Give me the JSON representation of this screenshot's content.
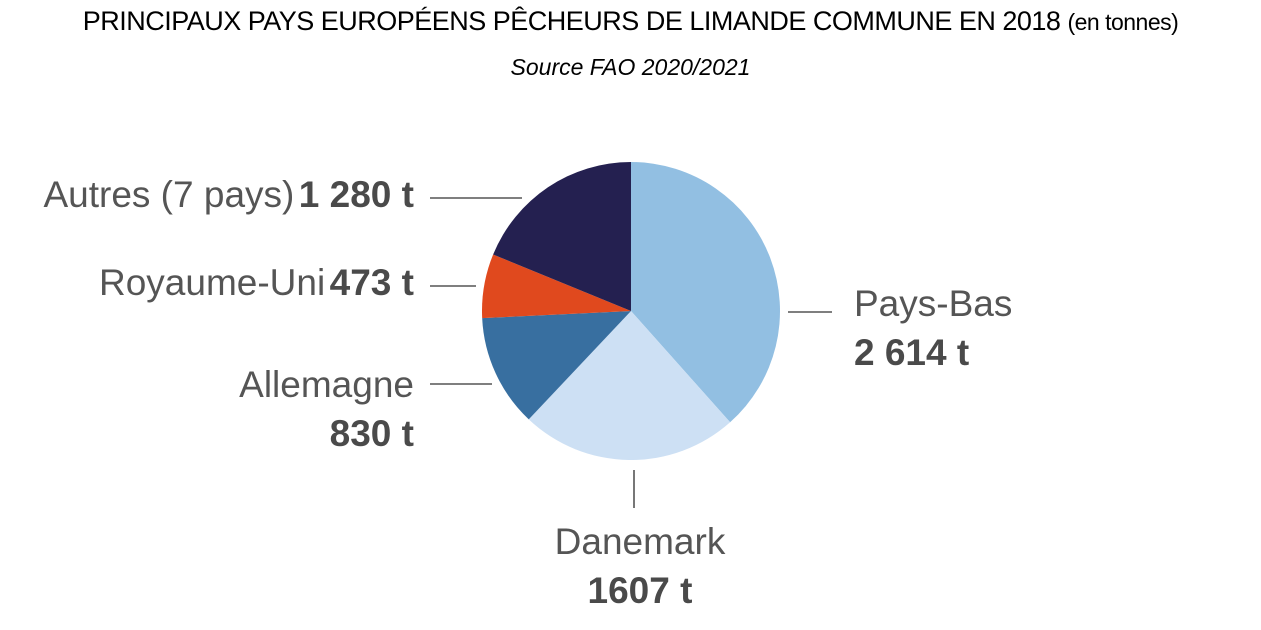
{
  "title": {
    "main": "PRINCIPAUX PAYS EUROPÉENS PÊCHEURS DE LIMANDE COMMUNE EN 2018",
    "unit": "(en tonnes)",
    "source": "Source FAO 2020/2021"
  },
  "chart_data": {
    "type": "pie",
    "unit": "t",
    "slices": [
      {
        "name": "Pays-Bas",
        "value": 2614,
        "value_label": "2 614 t",
        "color": "#92bfe2"
      },
      {
        "name": "Danemark",
        "value": 1607,
        "value_label": "1607 t",
        "color": "#cde0f4"
      },
      {
        "name": "Allemagne",
        "value": 830,
        "value_label": "830 t",
        "color": "#386fa0"
      },
      {
        "name": "Royaume-Uni",
        "value": 473,
        "value_label": "473 t",
        "color": "#e0491e"
      },
      {
        "name": "Autres (7 pays)",
        "value": 1280,
        "value_label": "1 280 t",
        "color": "#242050"
      }
    ]
  }
}
